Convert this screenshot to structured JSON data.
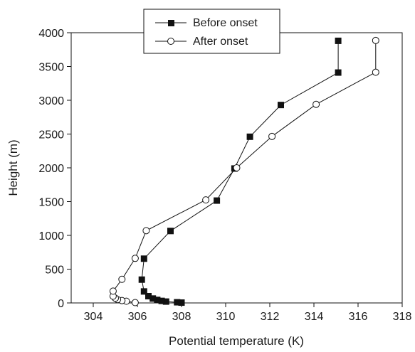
{
  "chart_data": {
    "type": "scatter",
    "xlabel": "Potential temperature (K)",
    "ylabel": "Height (m)",
    "xlim": [
      303,
      318
    ],
    "ylim": [
      0,
      4000
    ],
    "xticks": [
      304,
      306,
      308,
      310,
      312,
      314,
      316,
      318
    ],
    "yticks": [
      0,
      500,
      1000,
      1500,
      2000,
      2500,
      3000,
      3500,
      4000
    ],
    "x_tick_labels": [
      "304",
      "306",
      "308",
      "310",
      "312",
      "314",
      "316",
      "318"
    ],
    "y_tick_labels": [
      "0",
      "500",
      "1000",
      "1500",
      "2000",
      "2500",
      "3000",
      "3500",
      "4000"
    ],
    "grid": false,
    "legend_position": "top-center",
    "series": [
      {
        "name": "Before onset",
        "marker": "filled-square",
        "color": "#111111",
        "points": [
          {
            "x": 308.0,
            "y": 5
          },
          {
            "x": 307.8,
            "y": 10
          },
          {
            "x": 307.3,
            "y": 20
          },
          {
            "x": 307.1,
            "y": 30
          },
          {
            "x": 306.9,
            "y": 45
          },
          {
            "x": 306.7,
            "y": 65
          },
          {
            "x": 306.5,
            "y": 100
          },
          {
            "x": 306.3,
            "y": 170
          },
          {
            "x": 306.2,
            "y": 345
          },
          {
            "x": 306.3,
            "y": 655
          },
          {
            "x": 307.5,
            "y": 1065
          },
          {
            "x": 309.6,
            "y": 1515
          },
          {
            "x": 310.4,
            "y": 1990
          },
          {
            "x": 311.1,
            "y": 2460
          },
          {
            "x": 312.5,
            "y": 2930
          },
          {
            "x": 315.1,
            "y": 3410
          },
          {
            "x": 315.1,
            "y": 3880
          }
        ]
      },
      {
        "name": "After onset",
        "marker": "open-circle",
        "color": "#111111",
        "points": [
          {
            "x": 305.9,
            "y": 5
          },
          {
            "x": 305.5,
            "y": 25
          },
          {
            "x": 305.3,
            "y": 35
          },
          {
            "x": 305.1,
            "y": 50
          },
          {
            "x": 305.0,
            "y": 70
          },
          {
            "x": 304.9,
            "y": 100
          },
          {
            "x": 304.9,
            "y": 175
          },
          {
            "x": 305.3,
            "y": 350
          },
          {
            "x": 305.9,
            "y": 660
          },
          {
            "x": 306.4,
            "y": 1070
          },
          {
            "x": 309.1,
            "y": 1525
          },
          {
            "x": 310.5,
            "y": 2000
          },
          {
            "x": 312.1,
            "y": 2465
          },
          {
            "x": 314.1,
            "y": 2940
          },
          {
            "x": 316.8,
            "y": 3415
          },
          {
            "x": 316.8,
            "y": 3885
          }
        ]
      }
    ]
  }
}
